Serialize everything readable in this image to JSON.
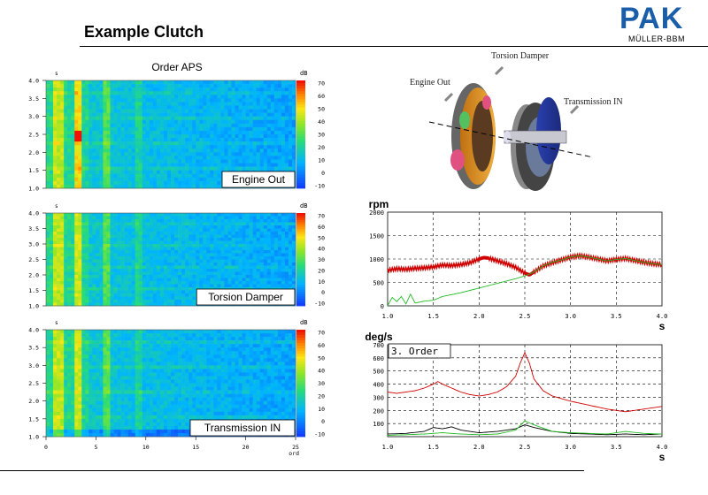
{
  "page": {
    "title": "Example Clutch",
    "logo_main": "PAK",
    "logo_sub": "MÜLLER-BBM"
  },
  "photo": {
    "labels": {
      "engine_out": "Engine Out",
      "torsion_damper": "Torsion Damper",
      "transmission_in": "Transmission IN"
    }
  },
  "colors": {
    "red_curve": "#d00000",
    "green_curve": "#22bb22",
    "black_curve": "#000000",
    "heatmap_low": "#1e3cff",
    "heatmap_high": "#ff1a00",
    "logo_blue": "#1a5da8"
  },
  "chart_data": [
    {
      "type": "heatmap",
      "title": "Order APS",
      "y_unit": "s",
      "x_unit": "ord",
      "ylim": [
        1.0,
        4.0
      ],
      "xlim": [
        0,
        25
      ],
      "y_ticks": [
        "4.0",
        "3.5",
        "3.0",
        "2.5",
        "2.0",
        "1.5",
        "1.0"
      ],
      "colorbar_unit": "dB",
      "colorbar_ticks": [
        "70",
        "60",
        "50",
        "40",
        "30",
        "20",
        "10",
        "0",
        "-10"
      ],
      "label": "Engine Out"
    },
    {
      "type": "heatmap",
      "y_unit": "s",
      "ylim": [
        1.0,
        4.0
      ],
      "xlim": [
        0,
        25
      ],
      "y_ticks": [
        "4.0",
        "3.5",
        "3.0",
        "2.5",
        "2.0",
        "1.5",
        "1.0"
      ],
      "colorbar_unit": "dB",
      "colorbar_ticks": [
        "70",
        "60",
        "50",
        "40",
        "30",
        "20",
        "10",
        "0",
        "-10"
      ],
      "label": "Torsion Damper"
    },
    {
      "type": "heatmap",
      "y_unit": "s",
      "x_unit": "ord",
      "ylim": [
        1.0,
        4.0
      ],
      "xlim": [
        0,
        25
      ],
      "y_ticks": [
        "4.0",
        "3.5",
        "3.0",
        "2.5",
        "2.0",
        "1.5",
        "1.0"
      ],
      "x_ticks": [
        "0",
        "5",
        "10",
        "15",
        "20",
        "25"
      ],
      "colorbar_unit": "dB",
      "colorbar_ticks": [
        "70",
        "60",
        "50",
        "40",
        "30",
        "20",
        "10",
        "0",
        "-10"
      ],
      "label": "Transmission IN"
    },
    {
      "type": "line",
      "ylabel": "rpm",
      "xlabel": "s",
      "xlim": [
        1.0,
        4.0
      ],
      "ylim": [
        0,
        2000
      ],
      "x_ticks": [
        "1.0",
        "1.5",
        "2.0",
        "2.5",
        "3.0",
        "3.5",
        "4.0"
      ],
      "y_ticks": [
        "2000",
        "1500",
        "1000",
        "500",
        "0"
      ],
      "grid": true,
      "series": [
        {
          "color": "#d00000",
          "x": [
            1.0,
            1.1,
            1.2,
            1.3,
            1.4,
            1.5,
            1.6,
            1.7,
            1.8,
            1.9,
            2.0,
            2.05,
            2.1,
            2.2,
            2.3,
            2.4,
            2.5,
            2.55,
            2.6,
            2.7,
            2.8,
            2.9,
            3.0,
            3.1,
            3.2,
            3.3,
            3.4,
            3.5,
            3.6,
            3.7,
            3.8,
            3.9,
            4.0
          ],
          "y": [
            760,
            790,
            780,
            800,
            810,
            830,
            870,
            860,
            880,
            920,
            1000,
            1030,
            1020,
            960,
            900,
            820,
            700,
            660,
            720,
            850,
            920,
            980,
            1040,
            1070,
            1040,
            1000,
            960,
            990,
            1010,
            970,
            930,
            900,
            880
          ]
        },
        {
          "color": "#22bb22",
          "x": [
            1.0,
            1.05,
            1.1,
            1.15,
            1.2,
            1.25,
            1.3,
            1.4,
            1.5,
            1.6,
            1.7,
            1.8,
            1.9,
            2.0,
            2.1,
            2.2,
            2.3,
            2.4,
            2.5,
            2.6,
            2.7,
            2.8,
            2.9,
            3.0,
            3.1,
            3.2,
            3.3,
            3.4,
            3.5,
            3.6,
            3.7,
            3.8,
            3.9,
            4.0
          ],
          "y": [
            0,
            180,
            90,
            200,
            40,
            250,
            60,
            100,
            120,
            200,
            240,
            280,
            330,
            380,
            430,
            480,
            530,
            580,
            640,
            720,
            850,
            930,
            980,
            1040,
            1070,
            1040,
            1000,
            960,
            990,
            1010,
            970,
            930,
            900,
            880
          ]
        }
      ]
    },
    {
      "type": "line",
      "ylabel": "deg/s",
      "xlabel": "s",
      "annotation": "3. Order",
      "xlim": [
        1.0,
        4.0
      ],
      "ylim": [
        0,
        700
      ],
      "x_ticks": [
        "1.0",
        "1.5",
        "2.0",
        "2.5",
        "3.0",
        "3.5",
        "4.0"
      ],
      "y_ticks": [
        "700",
        "600",
        "500",
        "400",
        "300",
        "200",
        "100"
      ],
      "grid": true,
      "series": [
        {
          "color": "#d00000",
          "x": [
            1.0,
            1.1,
            1.2,
            1.3,
            1.4,
            1.5,
            1.55,
            1.6,
            1.7,
            1.8,
            1.9,
            2.0,
            2.1,
            2.2,
            2.3,
            2.4,
            2.45,
            2.5,
            2.55,
            2.6,
            2.7,
            2.8,
            2.9,
            3.0,
            3.2,
            3.4,
            3.6,
            3.8,
            4.0
          ],
          "y": [
            340,
            330,
            340,
            350,
            370,
            400,
            420,
            400,
            370,
            340,
            320,
            310,
            320,
            340,
            380,
            460,
            560,
            640,
            560,
            440,
            350,
            310,
            290,
            270,
            240,
            210,
            190,
            210,
            230
          ]
        },
        {
          "color": "#000000",
          "x": [
            1.0,
            1.2,
            1.4,
            1.5,
            1.6,
            1.7,
            1.8,
            2.0,
            2.2,
            2.4,
            2.5,
            2.6,
            2.8,
            3.0,
            3.2,
            3.4,
            3.6,
            3.8,
            4.0
          ],
          "y": [
            20,
            25,
            40,
            70,
            60,
            75,
            50,
            30,
            40,
            60,
            90,
            70,
            40,
            25,
            20,
            15,
            20,
            15,
            20
          ]
        },
        {
          "color": "#22bb22",
          "x": [
            1.0,
            1.2,
            1.4,
            1.6,
            1.8,
            2.0,
            2.2,
            2.4,
            2.5,
            2.6,
            2.8,
            3.0,
            3.2,
            3.4,
            3.6,
            3.8,
            4.0
          ],
          "y": [
            10,
            15,
            20,
            30,
            20,
            15,
            20,
            50,
            120,
            90,
            40,
            30,
            25,
            20,
            40,
            25,
            20
          ]
        }
      ]
    }
  ]
}
